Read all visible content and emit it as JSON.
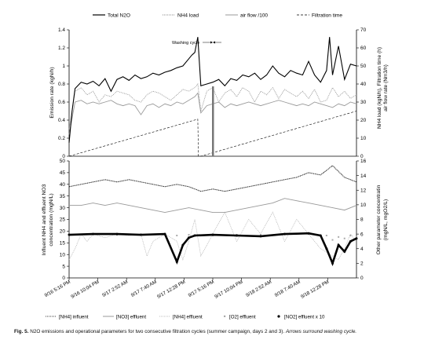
{
  "chart_data": [
    {
      "type": "line",
      "legend_position": "top",
      "legend": [
        "Total N2O",
        "NH4 load",
        "air flow /100",
        "Filtration time"
      ],
      "ylabel_left": "Emission rate (kgN/h)",
      "ylabel_right_line1": "NH4 load  (kgN/h), Filtration time (h)",
      "ylabel_right_line2": "air flow rate (Nm3/h)",
      "ylim_left": [
        0,
        1.4
      ],
      "ylim_right": [
        0,
        70
      ],
      "y_ticks_left": [
        "0",
        "0.2",
        "0.4",
        "0.6",
        "0.8",
        "1",
        "1.2",
        "1.4"
      ],
      "y_ticks_right": [
        "0",
        "10",
        "20",
        "30",
        "40",
        "50",
        "60",
        "70"
      ],
      "annotation": "Washing cycle",
      "grid": false,
      "x_hours": [
        0,
        21.5,
        22,
        48
      ],
      "series": [
        {
          "name": "Total N2O",
          "x": [
            0,
            0.5,
            1,
            2,
            3,
            4,
            5,
            6,
            7,
            8,
            9,
            10,
            11,
            12,
            13,
            14,
            15,
            16,
            17,
            18,
            19,
            20,
            20.5,
            21,
            21.5,
            22,
            23,
            24,
            25,
            26,
            27,
            28,
            29,
            30,
            31,
            32,
            33,
            34,
            35,
            36,
            37,
            38,
            39,
            40,
            41,
            42,
            43,
            43.5,
            44,
            45,
            46,
            47,
            48
          ],
          "values": [
            0.15,
            0.5,
            0.75,
            0.82,
            0.8,
            0.83,
            0.78,
            0.86,
            0.72,
            0.85,
            0.88,
            0.84,
            0.9,
            0.86,
            0.88,
            0.92,
            0.9,
            0.93,
            0.95,
            0.98,
            1.0,
            1.08,
            1.12,
            1.15,
            1.32,
            0.78,
            0.8,
            0.82,
            0.85,
            0.78,
            0.86,
            0.84,
            0.9,
            0.88,
            0.92,
            0.85,
            0.9,
            1.0,
            0.92,
            0.88,
            0.95,
            0.92,
            0.9,
            1.05,
            0.9,
            0.82,
            0.95,
            1.32,
            0.9,
            1.22,
            0.85,
            1.02,
            1.0
          ]
        },
        {
          "name": "NH4 load",
          "x": [
            0,
            1,
            2,
            3,
            4,
            5,
            6,
            7,
            8,
            9,
            10,
            11,
            12,
            13,
            14,
            15,
            16,
            17,
            18,
            19,
            20,
            21,
            21.5,
            22,
            23,
            24,
            25,
            26,
            27,
            28,
            29,
            30,
            31,
            32,
            33,
            34,
            35,
            36,
            37,
            38,
            39,
            40,
            41,
            42,
            43,
            44,
            45,
            46,
            47,
            48
          ],
          "values": [
            15,
            36,
            38,
            34,
            36,
            30,
            34,
            33,
            36,
            35,
            34,
            31,
            30,
            34,
            36,
            35,
            33,
            31,
            34,
            37,
            36,
            38,
            40,
            25,
            36,
            38,
            30,
            35,
            37,
            33,
            38,
            36,
            30,
            36,
            34,
            38,
            32,
            37,
            35,
            33,
            36,
            32,
            37,
            30,
            31,
            38,
            33,
            36,
            32,
            34
          ]
        },
        {
          "name": "air flow /100",
          "x": [
            0,
            1,
            2,
            3,
            4,
            5,
            6,
            7,
            8,
            9,
            10,
            11,
            12,
            13,
            14,
            15,
            16,
            17,
            18,
            19,
            20,
            21,
            21.5,
            22,
            23,
            24,
            25,
            26,
            27,
            28,
            29,
            30,
            31,
            32,
            33,
            34,
            35,
            36,
            37,
            38,
            39,
            40,
            41,
            42,
            43,
            44,
            45,
            46,
            47,
            48
          ],
          "values": [
            12,
            30,
            31,
            29,
            30,
            29,
            30,
            31,
            29,
            28,
            29,
            28,
            23,
            28,
            29,
            27,
            29,
            28,
            30,
            29,
            31,
            33,
            35,
            24,
            28,
            29,
            30,
            27,
            29,
            28,
            29,
            30,
            29,
            28,
            29,
            30,
            31,
            30,
            29,
            28,
            29,
            28,
            30,
            29,
            28,
            27,
            29,
            28,
            30,
            29
          ]
        },
        {
          "name": "Filtration time",
          "x": [
            0,
            21.5,
            21.6,
            22,
            48
          ],
          "values": [
            0,
            20.5,
            0,
            0,
            25
          ]
        }
      ]
    },
    {
      "type": "line",
      "legend_position": "bottom",
      "legend": [
        "[NH4] influent",
        "[NO3] effluent",
        "[NH4] effluent",
        "[O2] effluent",
        "[NO2] effluent x 10"
      ],
      "ylabel_left_line1": "Influent NH4 and effluent NO3",
      "ylabel_left_line2": "concentration (mgN/L)",
      "ylabel_right_line1": "Other parameter concentratin",
      "ylabel_right_line2": "(mgN/L, mgO2/L)",
      "ylim_left": [
        0,
        50
      ],
      "ylim_right": [
        0,
        16
      ],
      "y_ticks_left": [
        "0",
        "5",
        "10",
        "15",
        "20",
        "25",
        "30",
        "35",
        "40",
        "45",
        "50"
      ],
      "y_ticks_right": [
        "0",
        "2",
        "4",
        "6",
        "8",
        "10",
        "12",
        "14",
        "16"
      ],
      "x_tick_labels": [
        "9/16 5:16 PM",
        "9/16 10:04 PM",
        "9/17 2:52 AM",
        "9/17 7:40 AM",
        "9/17 12:28 PM",
        "9/17 5:16 PM",
        "9/17 10:04 PM",
        "9/18 2:52 AM",
        "9/18 7:40 AM",
        "9/18 12:28 PM"
      ],
      "grid": false,
      "series": [
        {
          "name": "[NH4] influent",
          "x": [
            0,
            2,
            4,
            6,
            8,
            10,
            12,
            14,
            16,
            18,
            20,
            22,
            24,
            26,
            28,
            30,
            32,
            34,
            36,
            38,
            40,
            42,
            43,
            44,
            46,
            48
          ],
          "values": [
            39,
            40,
            41,
            42,
            41,
            42,
            41,
            40,
            39,
            40,
            39,
            37,
            38,
            37,
            38,
            39,
            40,
            41,
            42,
            43,
            45,
            44,
            46,
            48,
            43,
            41
          ]
        },
        {
          "name": "[NO3] effluent",
          "x": [
            0,
            2,
            4,
            6,
            8,
            10,
            12,
            14,
            16,
            18,
            20,
            22,
            24,
            26,
            28,
            30,
            32,
            34,
            36,
            38,
            40,
            42,
            44,
            46,
            48
          ],
          "values": [
            31,
            31,
            32,
            31,
            32,
            31,
            30,
            29,
            28,
            29,
            30,
            29,
            28,
            28,
            29,
            30,
            31,
            32,
            34,
            33,
            32,
            31,
            30,
            29,
            31
          ]
        },
        {
          "name": "[NH4] effluent",
          "x": [
            0,
            1,
            2,
            3,
            4,
            6,
            8,
            10,
            12,
            13,
            14,
            16,
            18,
            19,
            20,
            21,
            22,
            24,
            26,
            28,
            30,
            32,
            34,
            36,
            38,
            40,
            42,
            44,
            45,
            46,
            47,
            48
          ],
          "values": [
            2.5,
            4,
            6,
            5,
            6,
            5.5,
            6,
            5.8,
            6,
            3,
            5,
            6,
            5,
            2.5,
            5,
            8,
            3,
            6,
            9,
            5,
            8,
            6,
            9,
            5,
            8,
            6,
            4,
            3,
            2.5,
            4,
            6,
            5
          ]
        },
        {
          "name": "[O2] effluent",
          "x": [
            0,
            4,
            8,
            12,
            16,
            18,
            20,
            24,
            28,
            32,
            36,
            40,
            43,
            44,
            45,
            46,
            47,
            48
          ],
          "values": [
            6.0,
            6.0,
            5.9,
            5.9,
            5.9,
            5.8,
            5.9,
            5.8,
            5.9,
            5.9,
            6.0,
            6.0,
            5.8,
            5.2,
            5.6,
            5.4,
            5.8,
            5.6
          ]
        },
        {
          "name": "[NO2] effluent x 10",
          "x": [
            0,
            4,
            8,
            12,
            16,
            18,
            19,
            20,
            21,
            24,
            28,
            32,
            36,
            40,
            42,
            43,
            44,
            45,
            46,
            47,
            48
          ],
          "values": [
            5.9,
            6.0,
            6.0,
            5.9,
            6.0,
            2.2,
            4.5,
            5.5,
            5.8,
            5.9,
            5.8,
            5.7,
            6.0,
            6.1,
            5.8,
            4.0,
            2.0,
            4.5,
            3.6,
            5.0,
            5.4
          ]
        }
      ]
    }
  ],
  "caption": {
    "label": "Fig. 5.",
    "text": " N2O emissions and operational parameters for two consecutive filtration cycles (summer campaign, days 2 and 3). ",
    "italic": "Arrows surround washing cycle."
  }
}
